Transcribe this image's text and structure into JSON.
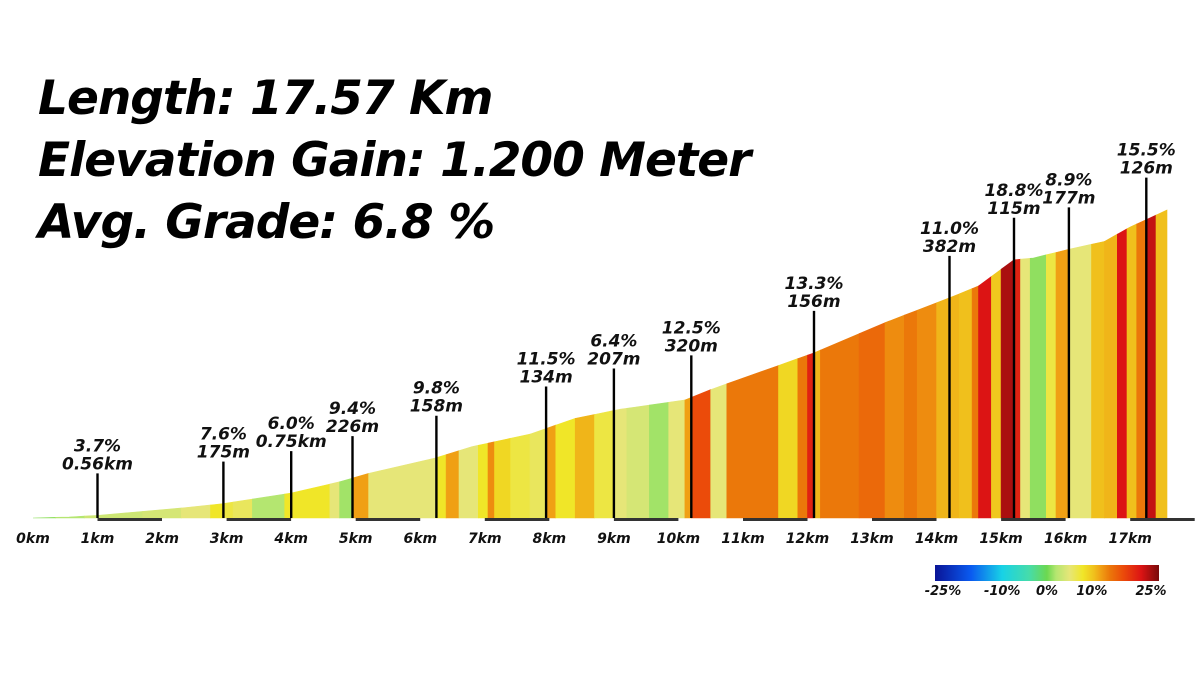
{
  "stats": {
    "length": "Length: 17.57 Km",
    "gain": "Elevation Gain: 1.200 Meter",
    "grade": "Avg. Grade: 6.8 %"
  },
  "chart_data": {
    "type": "area",
    "x_unit": "km",
    "x_ticks": [
      "0km",
      "1km",
      "2km",
      "3km",
      "4km",
      "5km",
      "6km",
      "7km",
      "8km",
      "9km",
      "10km",
      "11km",
      "12km",
      "13km",
      "14km",
      "15km",
      "16km",
      "17km"
    ],
    "xlim": [
      0,
      17.57
    ],
    "elevation_gain_total_m": 1200,
    "profile": [
      {
        "km": 0,
        "elev": 0
      },
      {
        "km": 0.56,
        "elev": 4
      },
      {
        "km": 1.0,
        "elev": 10
      },
      {
        "km": 1.7,
        "elev": 25
      },
      {
        "km": 2.3,
        "elev": 38
      },
      {
        "km": 2.95,
        "elev": 55
      },
      {
        "km": 3.4,
        "elev": 72
      },
      {
        "km": 4.0,
        "elev": 95
      },
      {
        "km": 4.75,
        "elev": 138
      },
      {
        "km": 5.2,
        "elev": 170
      },
      {
        "km": 6.25,
        "elev": 230
      },
      {
        "km": 6.8,
        "elev": 272
      },
      {
        "km": 7.7,
        "elev": 320
      },
      {
        "km": 8.4,
        "elev": 380
      },
      {
        "km": 9.1,
        "elev": 415
      },
      {
        "km": 10.1,
        "elev": 450
      },
      {
        "km": 10.5,
        "elev": 490
      },
      {
        "km": 12.1,
        "elev": 630
      },
      {
        "km": 13.2,
        "elev": 745
      },
      {
        "km": 14.2,
        "elev": 840
      },
      {
        "km": 14.65,
        "elev": 885
      },
      {
        "km": 15.2,
        "elev": 985
      },
      {
        "km": 15.5,
        "elev": 992
      },
      {
        "km": 16.05,
        "elev": 1025
      },
      {
        "km": 16.6,
        "elev": 1055
      },
      {
        "km": 17.0,
        "elev": 1110
      },
      {
        "km": 17.57,
        "elev": 1175
      }
    ],
    "segments": [
      {
        "from": 0.0,
        "to": 0.35,
        "grade": 1
      },
      {
        "from": 0.35,
        "to": 0.8,
        "grade": 2
      },
      {
        "from": 0.8,
        "to": 1.7,
        "grade": 3.5
      },
      {
        "from": 1.7,
        "to": 2.3,
        "grade": 4
      },
      {
        "from": 2.3,
        "to": 2.75,
        "grade": 5
      },
      {
        "from": 2.75,
        "to": 2.95,
        "grade": 8
      },
      {
        "from": 2.95,
        "to": 3.1,
        "grade": 7
      },
      {
        "from": 3.1,
        "to": 3.4,
        "grade": 6
      },
      {
        "from": 3.4,
        "to": 3.9,
        "grade": 2
      },
      {
        "from": 3.9,
        "to": 4.6,
        "grade": 8
      },
      {
        "from": 4.6,
        "to": 4.75,
        "grade": 5
      },
      {
        "from": 4.75,
        "to": 4.95,
        "grade": 1.5
      },
      {
        "from": 4.95,
        "to": 5.2,
        "grade": 12
      },
      {
        "from": 5.2,
        "to": 6.25,
        "grade": 5
      },
      {
        "from": 6.25,
        "to": 6.4,
        "grade": 8
      },
      {
        "from": 6.4,
        "to": 6.6,
        "grade": 12
      },
      {
        "from": 6.6,
        "to": 6.9,
        "grade": 5
      },
      {
        "from": 6.9,
        "to": 7.05,
        "grade": 8
      },
      {
        "from": 7.05,
        "to": 7.15,
        "grade": 13
      },
      {
        "from": 7.15,
        "to": 7.4,
        "grade": 9
      },
      {
        "from": 7.4,
        "to": 7.7,
        "grade": 7
      },
      {
        "from": 7.7,
        "to": 7.95,
        "grade": 6
      },
      {
        "from": 7.95,
        "to": 8.1,
        "grade": 12
      },
      {
        "from": 8.1,
        "to": 8.4,
        "grade": 8
      },
      {
        "from": 8.4,
        "to": 8.7,
        "grade": 11
      },
      {
        "from": 8.7,
        "to": 9.0,
        "grade": 7
      },
      {
        "from": 9.0,
        "to": 9.2,
        "grade": 5
      },
      {
        "from": 9.2,
        "to": 9.55,
        "grade": 4
      },
      {
        "from": 9.55,
        "to": 9.85,
        "grade": 1.5
      },
      {
        "from": 9.85,
        "to": 10.1,
        "grade": 5
      },
      {
        "from": 10.1,
        "to": 10.2,
        "grade": 12
      },
      {
        "from": 10.2,
        "to": 10.5,
        "grade": 17
      },
      {
        "from": 10.5,
        "to": 10.75,
        "grade": 5
      },
      {
        "from": 10.75,
        "to": 11.55,
        "grade": 14
      },
      {
        "from": 11.55,
        "to": 11.85,
        "grade": 9
      },
      {
        "from": 11.85,
        "to": 12.0,
        "grade": 14
      },
      {
        "from": 12.0,
        "to": 12.1,
        "grade": 20
      },
      {
        "from": 12.1,
        "to": 12.2,
        "grade": 11
      },
      {
        "from": 12.2,
        "to": 12.8,
        "grade": 14
      },
      {
        "from": 12.8,
        "to": 13.2,
        "grade": 15
      },
      {
        "from": 13.2,
        "to": 13.5,
        "grade": 13
      },
      {
        "from": 13.5,
        "to": 13.7,
        "grade": 14
      },
      {
        "from": 13.7,
        "to": 14.0,
        "grade": 13
      },
      {
        "from": 14.0,
        "to": 14.35,
        "grade": 11
      },
      {
        "from": 14.35,
        "to": 14.55,
        "grade": 10.5
      },
      {
        "from": 14.55,
        "to": 14.65,
        "grade": 14
      },
      {
        "from": 14.65,
        "to": 14.85,
        "grade": 21
      },
      {
        "from": 14.85,
        "to": 15.0,
        "grade": 10
      },
      {
        "from": 15.0,
        "to": 15.2,
        "grade": 23
      },
      {
        "from": 15.2,
        "to": 15.3,
        "grade": 20
      },
      {
        "from": 15.3,
        "to": 15.45,
        "grade": 5
      },
      {
        "from": 15.45,
        "to": 15.7,
        "grade": 1
      },
      {
        "from": 15.7,
        "to": 15.85,
        "grade": 7
      },
      {
        "from": 15.85,
        "to": 16.05,
        "grade": 12
      },
      {
        "from": 16.05,
        "to": 16.4,
        "grade": 5
      },
      {
        "from": 16.4,
        "to": 16.6,
        "grade": 10.5
      },
      {
        "from": 16.6,
        "to": 16.8,
        "grade": 11
      },
      {
        "from": 16.8,
        "to": 16.95,
        "grade": 21
      },
      {
        "from": 16.95,
        "to": 17.1,
        "grade": 10.5
      },
      {
        "from": 17.1,
        "to": 17.25,
        "grade": 14
      },
      {
        "from": 17.25,
        "to": 17.4,
        "grade": 22
      },
      {
        "from": 17.4,
        "to": 17.57,
        "grade": 10.5
      }
    ],
    "annotations": [
      {
        "km": 1.0,
        "grade": "3.7%",
        "length": "0.56km"
      },
      {
        "km": 2.95,
        "grade": "7.6%",
        "length": "175m"
      },
      {
        "km": 4.0,
        "grade": "6.0%",
        "length": "0.75km"
      },
      {
        "km": 4.95,
        "grade": "9.4%",
        "length": "226m"
      },
      {
        "km": 6.25,
        "grade": "9.8%",
        "length": "158m"
      },
      {
        "km": 7.95,
        "grade": "11.5%",
        "length": "134m"
      },
      {
        "km": 9.0,
        "grade": "6.4%",
        "length": "207m"
      },
      {
        "km": 10.2,
        "grade": "12.5%",
        "length": "320m"
      },
      {
        "km": 12.1,
        "grade": "13.3%",
        "length": "156m"
      },
      {
        "km": 14.2,
        "grade": "11.0%",
        "length": "382m"
      },
      {
        "km": 15.2,
        "grade": "18.8%",
        "length": "115m"
      },
      {
        "km": 16.05,
        "grade": "8.9%",
        "length": "177m"
      },
      {
        "km": 17.25,
        "grade": "15.5%",
        "length": "126m"
      }
    ],
    "legend": {
      "labels": [
        "-25%",
        "-10%",
        "0%",
        "10%",
        "25%"
      ],
      "stops": [
        {
          "grade": -25,
          "color": "#0a1496"
        },
        {
          "grade": -17,
          "color": "#0a5af0"
        },
        {
          "grade": -10,
          "color": "#18d2e6"
        },
        {
          "grade": -4,
          "color": "#46dcaa"
        },
        {
          "grade": 0,
          "color": "#6cd850"
        },
        {
          "grade": 2,
          "color": "#b4e670"
        },
        {
          "grade": 5,
          "color": "#e6e678"
        },
        {
          "grade": 8,
          "color": "#f0e628"
        },
        {
          "grade": 10.5,
          "color": "#f0c01c"
        },
        {
          "grade": 12,
          "color": "#f0a014"
        },
        {
          "grade": 14,
          "color": "#eb780a"
        },
        {
          "grade": 17,
          "color": "#eb4b0a"
        },
        {
          "grade": 21,
          "color": "#dc1414"
        },
        {
          "grade": 25,
          "color": "#780a0a"
        }
      ]
    }
  }
}
